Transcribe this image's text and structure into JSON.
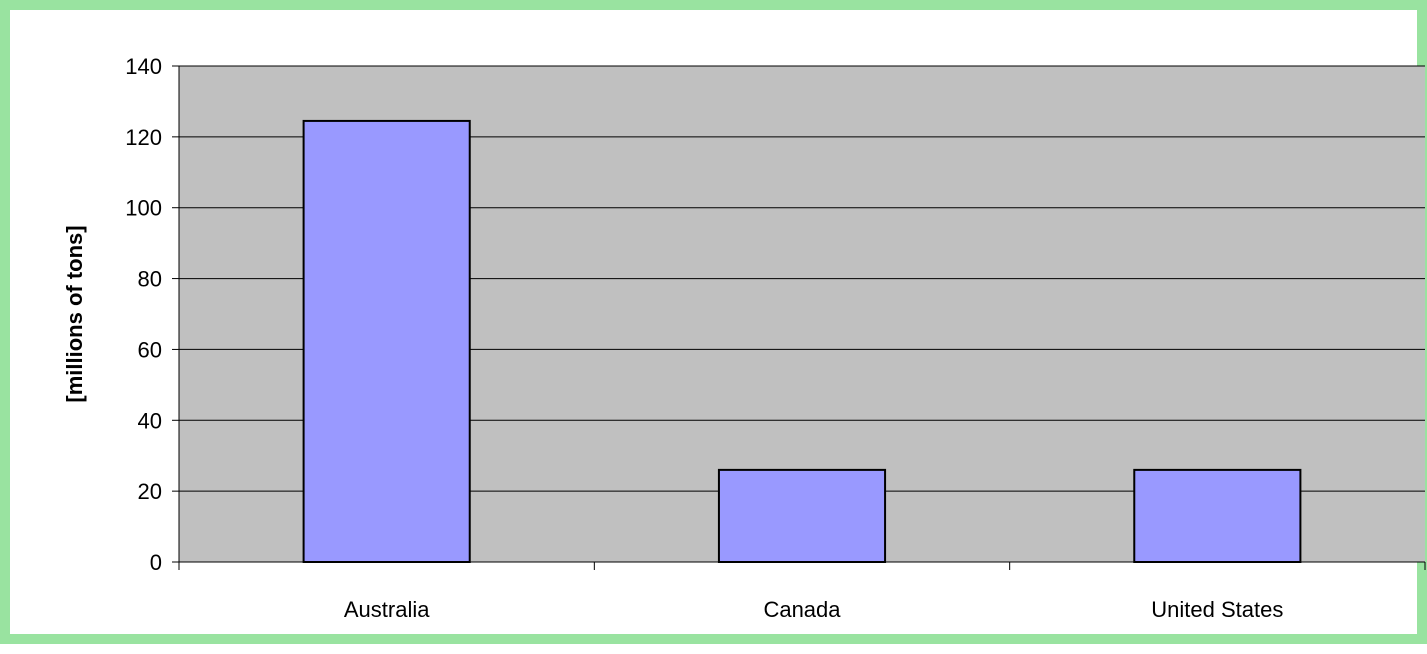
{
  "chart_data": {
    "type": "bar",
    "title": "",
    "xlabel": "",
    "ylabel": "[millions of tons]",
    "categories": [
      "Australia",
      "Canada",
      "United States"
    ],
    "values": [
      124.5,
      26,
      26
    ],
    "ylim": [
      0,
      140
    ],
    "yticks": [
      "0",
      "20",
      "40",
      "60",
      "80",
      "100",
      "120",
      "140"
    ],
    "grid": true,
    "legend": "none",
    "colors": {
      "frame_border": "#99e3a0",
      "plot_background": "#c0c0c0",
      "bar_fill": "#9999ff",
      "bar_stroke": "#000000",
      "gridline": "#000000"
    }
  }
}
